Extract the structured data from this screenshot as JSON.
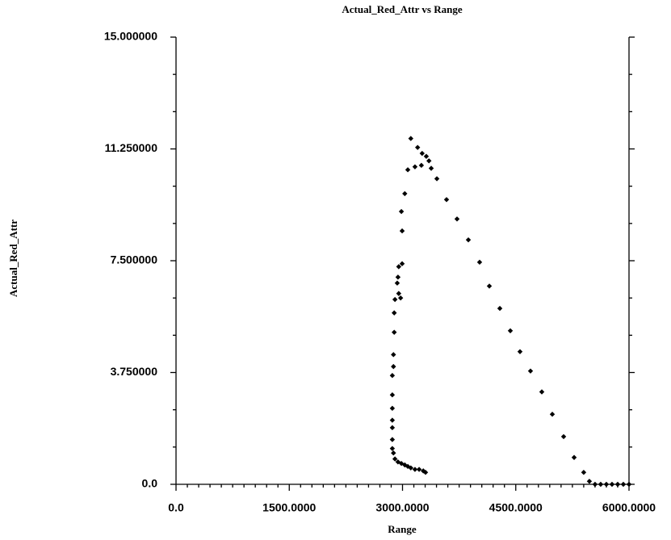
{
  "chart_data": {
    "type": "scatter",
    "title": "Actual_Red_Attr vs Range",
    "x_label": "Range",
    "y_label": "Actual_Red_Attr",
    "xlim": [
      0,
      6000
    ],
    "ylim": [
      0,
      15
    ],
    "xticks": [
      {
        "value": 0,
        "label": "0.0"
      },
      {
        "value": 1500,
        "label": "1500.0000"
      },
      {
        "value": 3000,
        "label": "3000.0000"
      },
      {
        "value": 4500,
        "label": "4500.0000"
      },
      {
        "value": 6000,
        "label": "6000.0000"
      }
    ],
    "yticks": [
      {
        "value": 0,
        "label": "0.0"
      },
      {
        "value": 3.75,
        "label": "3.750000"
      },
      {
        "value": 7.5,
        "label": "7.500000"
      },
      {
        "value": 11.25,
        "label": "11.250000"
      },
      {
        "value": 15,
        "label": "15.000000"
      }
    ],
    "series": [
      {
        "color": "#000000",
        "x": [
          3380,
          3455,
          3583,
          3722,
          3872,
          4021,
          4150,
          4289,
          4428,
          4556,
          4695,
          4845,
          4984,
          5134,
          5273,
          5400,
          5475,
          5550,
          5625,
          5700,
          5775,
          5850,
          5925,
          6000,
          3110,
          3200,
          3260,
          3315,
          3350,
          3250,
          3165,
          3070,
          3030,
          2985,
          2995,
          2995,
          2950,
          2940,
          2930,
          2950,
          2975,
          2900,
          2890,
          2890,
          2880,
          2880,
          2865,
          2865,
          2865,
          2865,
          2865,
          2865,
          2865,
          2880,
          2900,
          2940,
          2985,
          3030,
          3070,
          3110,
          3165,
          3220,
          3275,
          3305
        ],
        "y": [
          10.6,
          10.25,
          9.55,
          8.9,
          8.2,
          7.45,
          6.65,
          5.9,
          5.15,
          4.45,
          3.8,
          3.1,
          2.35,
          1.6,
          0.9,
          0.4,
          0.1,
          0,
          0,
          0,
          0,
          0,
          0,
          0,
          11.6,
          11.3,
          11.1,
          11.0,
          10.85,
          10.7,
          10.65,
          10.55,
          9.75,
          9.15,
          8.5,
          7.4,
          7.3,
          6.95,
          6.75,
          6.4,
          6.25,
          6.2,
          5.75,
          5.1,
          4.35,
          3.95,
          3.65,
          3.0,
          2.55,
          2.15,
          1.9,
          1.5,
          1.2,
          1.05,
          0.85,
          0.75,
          0.7,
          0.65,
          0.6,
          0.55,
          0.5,
          0.5,
          0.45,
          0.4
        ]
      }
    ]
  }
}
